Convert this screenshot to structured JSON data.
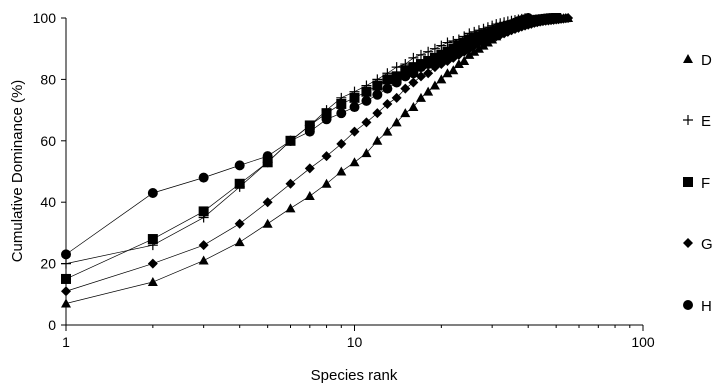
{
  "chart_data": {
    "type": "line",
    "title": "",
    "xlabel": "Species rank",
    "ylabel": "Cumulative Dominance (%)",
    "xscale": "log",
    "xlim": [
      1,
      100
    ],
    "ylim": [
      0,
      100
    ],
    "xticks": [
      "1",
      "10",
      "100"
    ],
    "yticks": [
      "0",
      "20",
      "40",
      "60",
      "80",
      "100"
    ],
    "grid": false,
    "legend_position": "right",
    "colors": {
      "marker": "#000000",
      "line": "#000000"
    },
    "series": [
      {
        "name": "D",
        "marker": "triangle",
        "x": [
          1,
          2,
          3,
          4,
          5,
          6,
          7,
          8,
          9,
          10,
          11,
          12,
          13,
          14,
          15,
          16,
          17,
          18,
          19,
          20,
          21,
          22,
          23,
          24,
          25,
          26,
          27,
          28,
          29,
          30,
          31,
          32,
          33,
          34,
          35,
          36,
          37,
          38,
          39,
          40,
          41,
          42,
          43,
          44,
          45,
          46,
          47,
          48,
          49,
          50,
          51,
          52,
          53,
          54,
          55
        ],
        "y": [
          7,
          14,
          21,
          27,
          33,
          38,
          42,
          46,
          50,
          53,
          56,
          60,
          63,
          66,
          69,
          71,
          74,
          76,
          78,
          80,
          82,
          83,
          85,
          86,
          88,
          89,
          90,
          91,
          92,
          93,
          94,
          95,
          95.5,
          96,
          96.5,
          97,
          97.4,
          97.7,
          98,
          98.3,
          98.5,
          98.7,
          98.9,
          99.1,
          99.2,
          99.3,
          99.4,
          99.5,
          99.6,
          99.7,
          99.8,
          99.85,
          99.9,
          99.95,
          100
        ]
      },
      {
        "name": "E",
        "marker": "plus",
        "x": [
          1,
          2,
          3,
          4,
          5,
          6,
          7,
          8,
          9,
          10,
          11,
          12,
          13,
          14,
          15,
          16,
          17,
          18,
          19,
          20,
          21,
          22,
          23,
          24,
          25,
          26,
          27,
          28,
          29,
          30,
          31,
          32,
          33,
          34,
          35,
          36,
          37,
          38,
          39,
          40
        ],
        "y": [
          20,
          26,
          35,
          45,
          53,
          60,
          65,
          70,
          74,
          76,
          78,
          80,
          82,
          84,
          85,
          87,
          88,
          89,
          90,
          91,
          92,
          92.5,
          93,
          94,
          95,
          95.5,
          96,
          96.5,
          97,
          97.5,
          98,
          98.3,
          98.6,
          98.9,
          99.1,
          99.3,
          99.5,
          99.7,
          99.9,
          100
        ]
      },
      {
        "name": "F",
        "marker": "square",
        "x": [
          1,
          2,
          3,
          4,
          5,
          6,
          7,
          8,
          9,
          10,
          11,
          12,
          13,
          14,
          15,
          16,
          17,
          18,
          19,
          20,
          21,
          22,
          23,
          24,
          25,
          26,
          27,
          28,
          29,
          30,
          31,
          32,
          33,
          34,
          35,
          36,
          37,
          38,
          39,
          40,
          41,
          42,
          43,
          44,
          45,
          46,
          47,
          48,
          49,
          50
        ],
        "y": [
          15,
          28,
          37,
          46,
          53,
          60,
          65,
          69,
          72,
          74,
          76,
          78,
          80,
          81,
          83,
          84,
          85,
          86,
          87,
          88,
          89,
          90,
          91,
          92,
          93,
          93.5,
          94,
          94.5,
          95,
          95.5,
          96,
          96.4,
          96.8,
          97.2,
          97.5,
          97.8,
          98.1,
          98.4,
          98.6,
          98.8,
          99,
          99.2,
          99.4,
          99.5,
          99.6,
          99.7,
          99.8,
          99.9,
          99.95,
          100
        ]
      },
      {
        "name": "G",
        "marker": "diamond",
        "x": [
          1,
          2,
          3,
          4,
          5,
          6,
          7,
          8,
          9,
          10,
          11,
          12,
          13,
          14,
          15,
          16,
          17,
          18,
          19,
          20,
          21,
          22,
          23,
          24,
          25,
          26,
          27,
          28,
          29,
          30,
          31,
          32,
          33,
          34,
          35,
          36,
          37,
          38,
          39,
          40,
          41,
          42,
          43,
          44,
          45,
          46,
          47,
          48,
          49,
          50,
          51,
          52,
          53,
          54,
          55
        ],
        "y": [
          11,
          20,
          26,
          33,
          40,
          46,
          51,
          55,
          59,
          63,
          66,
          69,
          72,
          74,
          77,
          79,
          81,
          82,
          84,
          85,
          86,
          87,
          88,
          89,
          90,
          91,
          92,
          92.5,
          93,
          93.5,
          94,
          94.5,
          95,
          95.5,
          96,
          96.4,
          96.8,
          97.2,
          97.5,
          97.8,
          98.1,
          98.4,
          98.6,
          98.8,
          99,
          99.1,
          99.2,
          99.3,
          99.4,
          99.5,
          99.6,
          99.7,
          99.8,
          99.9,
          100
        ]
      },
      {
        "name": "H",
        "marker": "circle",
        "x": [
          1,
          2,
          3,
          4,
          5,
          6,
          7,
          8,
          9,
          10,
          11,
          12,
          13,
          14,
          15,
          16,
          17,
          18,
          19,
          20,
          21,
          22,
          23,
          24,
          25,
          26,
          27,
          28,
          29,
          30,
          31,
          32,
          33,
          34,
          35,
          36,
          37,
          38,
          39,
          40
        ],
        "y": [
          23,
          43,
          48,
          52,
          55,
          60,
          63,
          67,
          69,
          71,
          73,
          75,
          77,
          79,
          81,
          82,
          84,
          85,
          86,
          87,
          88,
          89,
          90,
          91,
          92,
          93,
          94,
          94.5,
          95,
          95.5,
          96,
          96.5,
          97,
          97.5,
          98,
          98.5,
          99,
          99.3,
          99.6,
          100
        ]
      }
    ]
  }
}
